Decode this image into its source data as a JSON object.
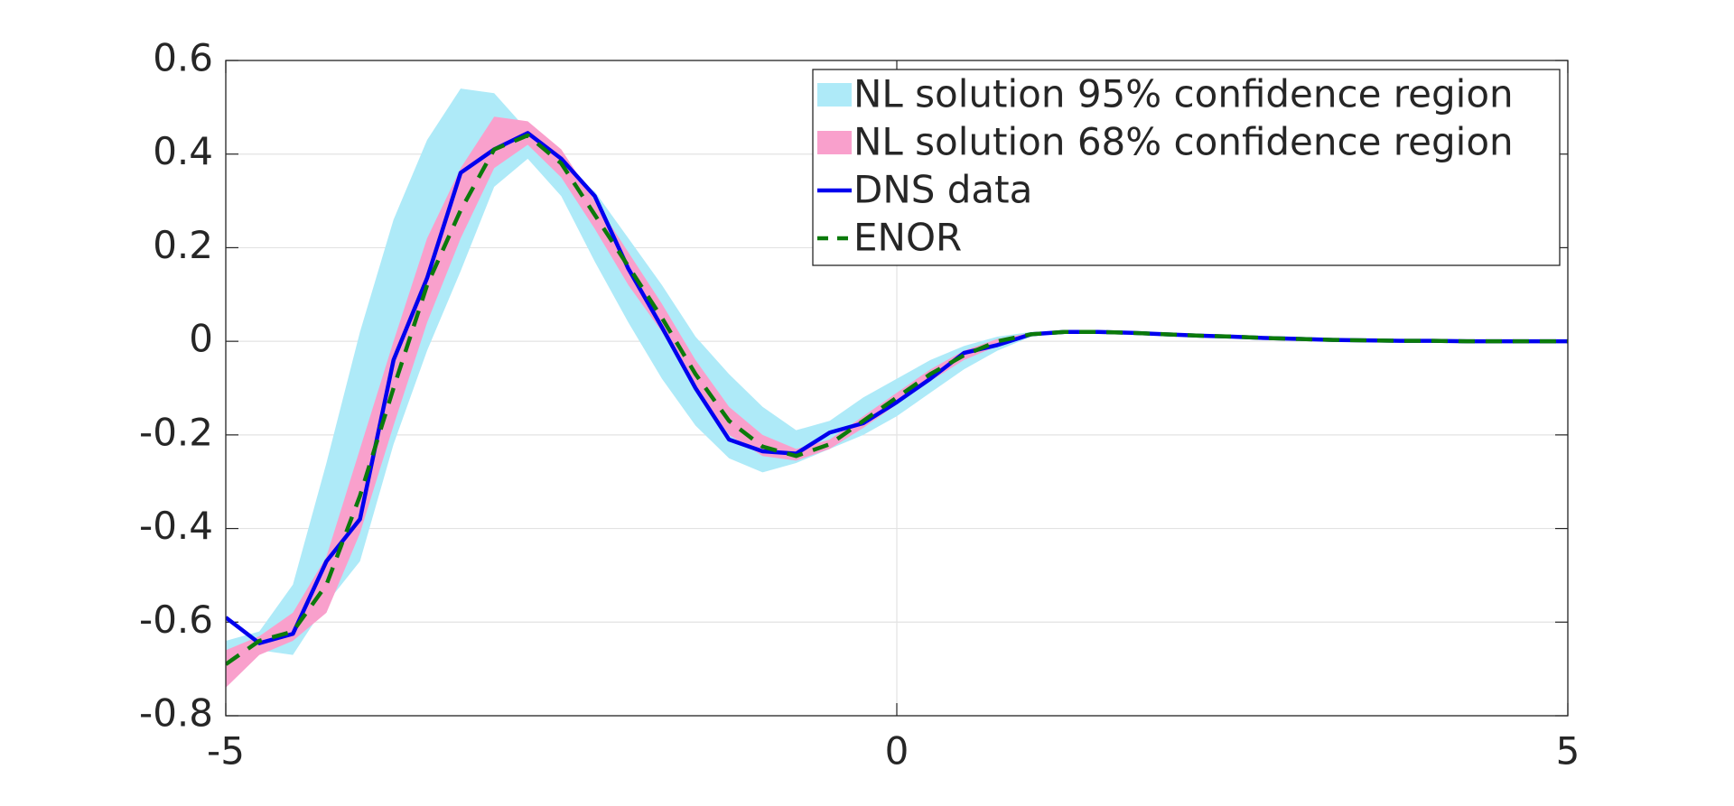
{
  "chart_data": {
    "type": "line",
    "x": [
      -5,
      -4.75,
      -4.5,
      -4.25,
      -4,
      -3.75,
      -3.5,
      -3.25,
      -3,
      -2.75,
      -2.5,
      -2.25,
      -2,
      -1.75,
      -1.5,
      -1.25,
      -1,
      -0.75,
      -0.5,
      -0.25,
      0,
      0.25,
      0.5,
      0.75,
      1,
      1.25,
      1.5,
      1.75,
      2,
      2.25,
      2.5,
      2.75,
      3,
      3.25,
      3.5,
      3.75,
      4,
      4.25,
      4.5,
      4.75,
      5
    ],
    "bands": [
      {
        "name": "NL solution 95% confidence region",
        "color": "#aeeaf8",
        "upper": [
          -0.64,
          -0.62,
          -0.52,
          -0.26,
          0.02,
          0.26,
          0.43,
          0.54,
          0.53,
          0.45,
          0.37,
          0.32,
          0.22,
          0.12,
          0.01,
          -0.07,
          -0.14,
          -0.19,
          -0.17,
          -0.12,
          -0.08,
          -0.04,
          -0.01,
          0.01,
          0.02,
          0.02,
          0.02,
          0.018,
          0.015,
          0.012,
          0.01,
          0.007,
          0.005,
          0.003,
          0.002,
          0.001,
          0.001,
          0,
          0,
          0,
          0
        ],
        "lower": [
          -0.73,
          -0.66,
          -0.67,
          -0.56,
          -0.47,
          -0.22,
          -0.02,
          0.15,
          0.33,
          0.39,
          0.31,
          0.17,
          0.04,
          -0.08,
          -0.18,
          -0.25,
          -0.28,
          -0.26,
          -0.23,
          -0.2,
          -0.16,
          -0.11,
          -0.06,
          -0.02,
          0.01,
          0.02,
          0.02,
          0.018,
          0.015,
          0.012,
          0.01,
          0.007,
          0.005,
          0.003,
          0.002,
          0.001,
          0.001,
          0,
          0,
          0,
          0
        ]
      },
      {
        "name": "NL solution 68% confidence region",
        "color": "#f9a0cc",
        "upper": [
          -0.66,
          -0.63,
          -0.58,
          -0.46,
          -0.23,
          0,
          0.22,
          0.37,
          0.48,
          0.47,
          0.41,
          0.3,
          0.19,
          0.08,
          -0.04,
          -0.14,
          -0.2,
          -0.23,
          -0.21,
          -0.16,
          -0.11,
          -0.06,
          -0.02,
          0.005,
          0.018,
          0.02,
          0.02,
          0.018,
          0.015,
          0.012,
          0.01,
          0.007,
          0.005,
          0.003,
          0.002,
          0.001,
          0.001,
          0,
          0,
          0,
          0
        ],
        "lower": [
          -0.74,
          -0.67,
          -0.64,
          -0.58,
          -0.41,
          -0.18,
          0.04,
          0.22,
          0.37,
          0.42,
          0.35,
          0.24,
          0.12,
          0.02,
          -0.1,
          -0.2,
          -0.245,
          -0.255,
          -0.23,
          -0.185,
          -0.135,
          -0.085,
          -0.04,
          -0.01,
          0.012,
          0.02,
          0.02,
          0.018,
          0.015,
          0.012,
          0.01,
          0.007,
          0.005,
          0.003,
          0.002,
          0.001,
          0.001,
          0,
          0,
          0,
          0
        ]
      }
    ],
    "series": [
      {
        "name": "DNS data",
        "color": "#0000ee",
        "dash": false,
        "values": [
          -0.59,
          -0.645,
          -0.625,
          -0.47,
          -0.38,
          -0.04,
          0.135,
          0.36,
          0.41,
          0.445,
          0.39,
          0.31,
          0.155,
          0.03,
          -0.1,
          -0.21,
          -0.235,
          -0.24,
          -0.195,
          -0.175,
          -0.13,
          -0.08,
          -0.025,
          -0.008,
          0.015,
          0.02,
          0.02,
          0.018,
          0.015,
          0.012,
          0.01,
          0.007,
          0.005,
          0.003,
          0.002,
          0.001,
          0.001,
          0,
          0,
          0,
          0
        ]
      },
      {
        "name": "ENOR",
        "color": "#0b7a0b",
        "dash": true,
        "values": [
          -0.69,
          -0.64,
          -0.62,
          -0.52,
          -0.33,
          -0.1,
          0.12,
          0.28,
          0.41,
          0.44,
          0.38,
          0.27,
          0.16,
          0.05,
          -0.07,
          -0.17,
          -0.225,
          -0.245,
          -0.22,
          -0.17,
          -0.12,
          -0.07,
          -0.03,
          0,
          0.015,
          0.02,
          0.02,
          0.018,
          0.015,
          0.012,
          0.01,
          0.007,
          0.005,
          0.003,
          0.002,
          0.001,
          0.001,
          0,
          0,
          0,
          0
        ]
      }
    ],
    "xlim": [
      -5,
      5
    ],
    "xticks": [
      -5,
      0,
      5
    ],
    "ylim": [
      -0.8,
      0.6
    ],
    "yticks": [
      -0.8,
      -0.6,
      -0.4,
      -0.2,
      0,
      0.2,
      0.4,
      0.6
    ],
    "grid": true,
    "legend": "upper right"
  }
}
